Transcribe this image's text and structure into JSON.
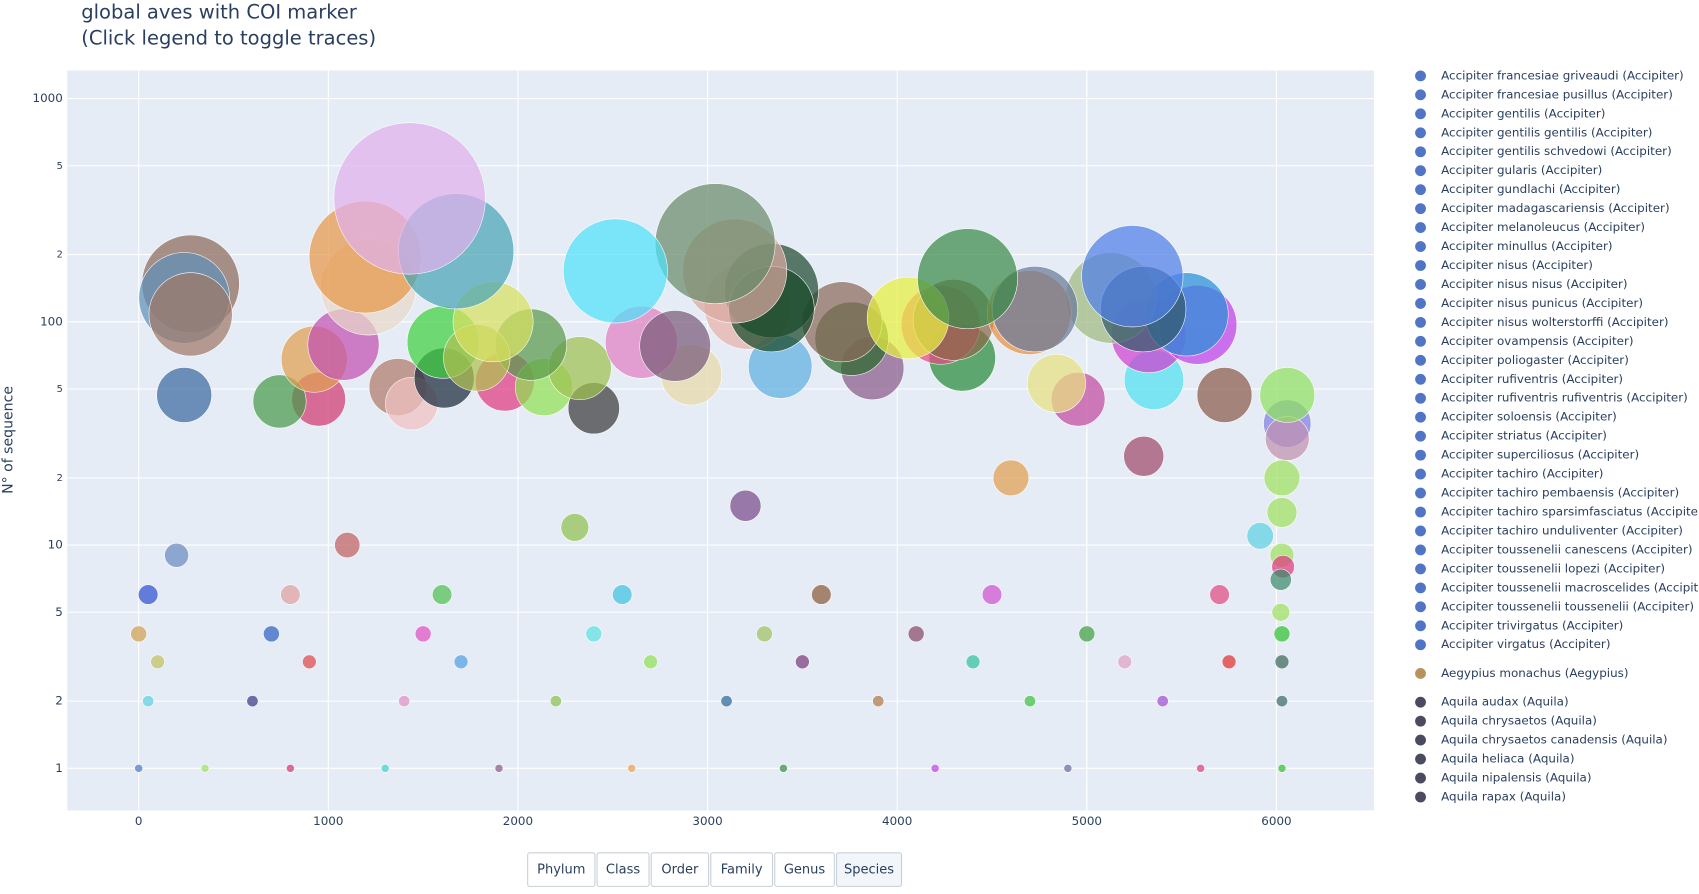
{
  "chart_data": {
    "type": "scatter",
    "title": "global aves with COI marker",
    "subtitle": "(Click legend to toggle traces)",
    "y_label": "N° of sequence",
    "log_y": true,
    "grid": true,
    "xlim": [
      -377,
      6514
    ],
    "ylim": [
      0.647,
      1336
    ],
    "xticks": [
      0,
      1000,
      2000,
      3000,
      4000,
      5000,
      6000
    ],
    "yticks": [
      1,
      2,
      5,
      10,
      {
        "value": 20,
        "label": "2"
      },
      {
        "value": 50,
        "label": "5"
      },
      100,
      {
        "value": 200,
        "label": "2"
      },
      {
        "value": 500,
        "label": "5"
      },
      1000
    ],
    "x": [
      0,
      350,
      800,
      1300,
      1900,
      2600,
      3400,
      4200,
      4900,
      5600,
      50,
      600,
      1400,
      2200,
      3100,
      3900,
      4700,
      5400,
      100,
      900,
      1700,
      2700,
      3500,
      4400,
      5200,
      5750,
      0,
      700,
      1500,
      2400,
      3300,
      4100,
      5000,
      50,
      800,
      1600,
      2550,
      3600,
      4500,
      5700,
      200,
      1100,
      2300,
      3200,
      4600,
      5300,
      6057,
      6057,
      6029,
      6029,
      5914,
      6029,
      6035,
      6023,
      6023,
      6029,
      6029,
      6029,
      6029,
      240,
      949,
      743,
      1366,
      1440,
      1611,
      1931,
      2137,
      2400,
      5354,
      5726,
      6057,
      4954,
      4840,
      3869,
      3383,
      2914,
      4343,
      2326,
      2651,
      2829,
      1606,
      2069,
      926,
      1080,
      1783,
      1869,
      3760,
      3709,
      4229,
      4297,
      4057,
      5326,
      5583,
      5526,
      5126,
      5297,
      5240,
      4697,
      4726,
      4371,
      3211,
      3337,
      3337,
      3143,
      3040,
      2514,
      274,
      240,
      274,
      1211,
      1194,
      1674,
      1429
    ],
    "values": [
      1,
      1,
      1,
      1,
      1,
      1,
      1,
      1,
      1,
      1,
      2,
      2,
      2,
      2,
      2,
      2,
      2,
      2,
      3,
      3,
      3,
      3,
      3,
      3,
      3,
      3,
      4,
      4,
      4,
      4,
      4,
      4,
      4,
      6,
      6,
      6,
      6,
      6,
      6,
      6,
      9,
      10,
      12,
      15,
      20,
      25,
      35,
      30,
      20,
      14,
      11,
      9,
      8,
      7,
      5,
      4,
      3,
      2,
      1,
      47,
      45,
      44,
      51,
      43,
      56,
      54,
      51,
      41,
      55,
      47,
      47,
      45,
      53,
      62,
      63,
      58,
      69,
      62,
      81,
      78,
      81,
      79,
      68,
      79,
      69,
      100,
      84,
      100,
      97,
      102,
      104,
      87,
      97,
      108,
      128,
      114,
      160,
      110,
      114,
      156,
      118,
      138,
      114,
      169,
      224,
      169,
      148,
      128,
      108,
      143,
      195,
      207,
      357
    ],
    "colors": [
      "#4a78c8",
      "#a0e060",
      "#d03a70",
      "#40d0d0",
      "#8a5a8a",
      "#e8a050",
      "#3a8a4a",
      "#c040e8",
      "#6a6aa0",
      "#e03a80",
      "#60d0e0",
      "#3a3a8a",
      "#e090c0",
      "#8ac050",
      "#2a6a9a",
      "#b07a4a",
      "#40c040",
      "#a050d0",
      "#c0c060",
      "#e04a4a",
      "#50a0e0",
      "#90e050",
      "#7a3a7a",
      "#30c0a0",
      "#e0a0c0",
      "#e03030",
      "#d0a050",
      "#3060c0",
      "#e050c0",
      "#60e0e0",
      "#a0c060",
      "#8a4a6a",
      "#40a040",
      "#3050d0",
      "#e0a0a0",
      "#50c050",
      "#40c0e0",
      "#8a5a3a",
      "#d050d0",
      "#e04a80",
      "#6a8ac0",
      "#c06060",
      "#90c050",
      "#7a4a8a",
      "#e0a050",
      "#a04a6a",
      "#8080e0",
      "#c090b0",
      "#a0e060",
      "#a0e060",
      "#60d0e0",
      "#a0e060",
      "#e03a80",
      "#3a8a6a",
      "#a0e060",
      "#30c030",
      "#3a6a5a",
      "#3a6a6a",
      "#30c030",
      "#3a6aa0",
      "#d03a70",
      "#4a9a4a",
      "#b07a6a",
      "#f0c0c0",
      "#1a2a3a",
      "#e03a80",
      "#90e050",
      "#3a3a3a",
      "#50e0f0",
      "#8a5a4a",
      "#90e060",
      "#c04aa0",
      "#e8e080",
      "#8a5a8a",
      "#60b0e0",
      "#e8d8a8",
      "#2a8a3a",
      "#a0c050",
      "#e080c0",
      "#7a5a7a",
      "#40d040",
      "#5a9a4a",
      "#e0a050",
      "#c050b0",
      "#b0c050",
      "#d8e060",
      "#2a6a2a",
      "#8a6a5a",
      "#e84a80",
      "#8a6a4a",
      "#e8f040",
      "#d040d0",
      "#c040e8",
      "#2890d8",
      "#a0b880",
      "#305a6a",
      "#5080e8",
      "#e89040",
      "#6a7a9a",
      "#3a8a4a",
      "#e8b0a8",
      "#204a30",
      "#184a28",
      "#d8a8a0",
      "#6a8a6a",
      "#50e0f8",
      "#8a6a5a",
      "#6090b8",
      "#a07868",
      "#e8d8c8",
      "#e8974a",
      "#4aa5b5",
      "#e0b0ec"
    ],
    "legend_groups": [
      {
        "color": "#5075c6",
        "names": [
          "Accipiter francesiae griveaudi (Accipiter)",
          "Accipiter francesiae pusillus (Accipiter)",
          "Accipiter gentilis (Accipiter)",
          "Accipiter gentilis gentilis (Accipiter)",
          "Accipiter gentilis schvedowi (Accipiter)",
          "Accipiter gularis (Accipiter)",
          "Accipiter gundlachi (Accipiter)",
          "Accipiter madagascariensis (Accipiter)",
          "Accipiter melanoleucus (Accipiter)",
          "Accipiter minullus (Accipiter)",
          "Accipiter nisus (Accipiter)",
          "Accipiter nisus nisus (Accipiter)",
          "Accipiter nisus punicus (Accipiter)",
          "Accipiter nisus wolterstorffi (Accipiter)",
          "Accipiter ovampensis (Accipiter)",
          "Accipiter poliogaster (Accipiter)",
          "Accipiter rufiventris (Accipiter)",
          "Accipiter rufiventris rufiventris (Accipiter)",
          "Accipiter soloensis (Accipiter)",
          "Accipiter striatus (Accipiter)",
          "Accipiter superciliosus (Accipiter)",
          "Accipiter tachiro (Accipiter)",
          "Accipiter tachiro pembaensis (Accipiter)",
          "Accipiter tachiro sparsimfasciatus (Accipiter)",
          "Accipiter tachiro unduliventer (Accipiter)",
          "Accipiter toussenelii canescens (Accipiter)",
          "Accipiter toussenelii lopezi (Accipiter)",
          "Accipiter toussenelii macroscelides (Accipiter)",
          "Accipiter toussenelii toussenelii (Accipiter)",
          "Accipiter trivirgatus (Accipiter)",
          "Accipiter virgatus (Accipiter)"
        ]
      },
      {
        "color": "#b8925a",
        "names": [
          "Aegypius monachus (Aegypius)"
        ]
      },
      {
        "color": "#4a4a60",
        "names": [
          "Aquila audax (Aquila)",
          "Aquila chrysaetos (Aquila)",
          "Aquila chrysaetos canadensis (Aquila)",
          "Aquila heliaca (Aquila)",
          "Aquila nipalensis (Aquila)",
          "Aquila rapax (Aquila)"
        ]
      }
    ],
    "buttons": [
      "Phylum",
      "Class",
      "Order",
      "Family",
      "Genus",
      "Species"
    ],
    "active_button": 5
  }
}
